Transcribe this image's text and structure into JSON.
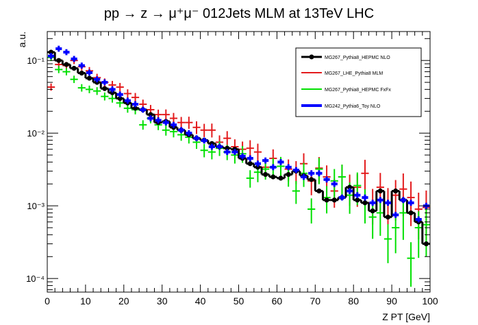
{
  "chart_data": {
    "type": "scatter",
    "title": "pp → z → μ⁺μ⁻ 012Jets MLM at 13TeV LHC",
    "xlabel": "Z PT [GeV]",
    "ylabel": "a.u.",
    "xlim": [
      0,
      100
    ],
    "ylim": [
      6.5e-05,
      0.25
    ],
    "yscale": "log",
    "grid": false,
    "legend_position": "top-right",
    "x_ticks": [
      0,
      10,
      20,
      30,
      40,
      50,
      60,
      70,
      80,
      90,
      100
    ],
    "x_tick_labels": [
      "0",
      "10",
      "20",
      "30",
      "40",
      "50",
      "60",
      "70",
      "80",
      "90",
      "100"
    ],
    "y_ticks": [
      0.0001,
      0.001,
      0.01,
      0.1
    ],
    "y_tick_labels": [
      "10⁻⁴",
      "10⁻³",
      "10⁻²",
      "10⁻¹"
    ],
    "series": [
      {
        "name": "MG267_Pythia8_HEPMC NLO",
        "color": "#000000",
        "style": "step-with-markers",
        "x": [
          1,
          3,
          5,
          7,
          9,
          11,
          13,
          15,
          17,
          19,
          21,
          23,
          25,
          27,
          29,
          31,
          33,
          35,
          37,
          39,
          41,
          43,
          45,
          47,
          49,
          51,
          53,
          55,
          57,
          59,
          61,
          63,
          65,
          67,
          69,
          71,
          73,
          75,
          77,
          79,
          81,
          83,
          85,
          87,
          89,
          91,
          93,
          95,
          97,
          99
        ],
        "y": [
          0.13,
          0.1,
          0.088,
          0.078,
          0.067,
          0.057,
          0.05,
          0.041,
          0.036,
          0.03,
          0.026,
          0.022,
          0.021,
          0.018,
          0.014,
          0.0145,
          0.012,
          0.011,
          0.0095,
          0.0085,
          0.008,
          0.0072,
          0.0065,
          0.0062,
          0.006,
          0.0045,
          0.0038,
          0.0034,
          0.0027,
          0.0025,
          0.0024,
          0.0027,
          0.003,
          0.0026,
          0.0023,
          0.0016,
          0.0012,
          0.0012,
          0.0013,
          0.0018,
          0.0012,
          0.0011,
          0.00085,
          0.0016,
          0.0007,
          0.0016,
          0.0012,
          0.0008,
          0.0006,
          0.0003
        ]
      },
      {
        "name": "MG267_LHE_Pythia8 MLM",
        "color": "#e31a1c",
        "style": "error-cross",
        "x": [
          1,
          3,
          5,
          7,
          9,
          11,
          13,
          15,
          17,
          19,
          21,
          23,
          25,
          27,
          29,
          31,
          33,
          35,
          37,
          39,
          41,
          43,
          45,
          47,
          49,
          51,
          53,
          55,
          57,
          59,
          61,
          63,
          65,
          67,
          69,
          71,
          73,
          75,
          77,
          79,
          81,
          83,
          85,
          87,
          89,
          91,
          93,
          95,
          97,
          99
        ],
        "y": [
          0.043,
          0.088,
          0.085,
          0.1,
          0.082,
          0.072,
          0.058,
          0.05,
          0.046,
          0.043,
          0.035,
          0.031,
          0.025,
          0.021,
          0.018,
          0.018,
          0.016,
          0.014,
          0.014,
          0.012,
          0.011,
          0.011,
          0.0075,
          0.0085,
          0.0065,
          0.006,
          0.0062,
          0.0055,
          0.0034,
          0.0045,
          0.0035,
          0.0032,
          0.003,
          0.0038,
          0.0022,
          0.0033,
          0.0025,
          0.0016,
          0.0025,
          0.0018,
          0.0018,
          0.0028,
          0.0011,
          0.0018,
          0.0011,
          0.0014,
          0.0017,
          0.0013,
          0.0009,
          0.00095
        ]
      },
      {
        "name": "MG267_Pythia8_HEPMC FxFx",
        "color": "#00e000",
        "style": "error-cross",
        "x": [
          1,
          3,
          5,
          7,
          9,
          11,
          13,
          15,
          17,
          19,
          21,
          23,
          25,
          27,
          29,
          31,
          33,
          35,
          37,
          39,
          41,
          43,
          45,
          47,
          49,
          51,
          53,
          55,
          57,
          59,
          61,
          63,
          65,
          67,
          69,
          71,
          73,
          75,
          77,
          79,
          81,
          83,
          85,
          87,
          89,
          91,
          93,
          95,
          97,
          99
        ],
        "y": [
          0.11,
          0.075,
          0.07,
          0.055,
          0.042,
          0.04,
          0.038,
          0.032,
          0.03,
          0.026,
          0.022,
          0.021,
          0.013,
          0.016,
          0.013,
          0.011,
          0.0105,
          0.0095,
          0.0088,
          0.0075,
          0.0058,
          0.0055,
          0.0062,
          0.0055,
          0.005,
          0.0052,
          0.0024,
          0.0029,
          0.0032,
          0.0034,
          0.0035,
          0.0027,
          0.0016,
          0.0028,
          0.0009,
          0.0032,
          0.0013,
          0.0022,
          0.0025,
          0.0014,
          0.0019,
          0.0011,
          0.0007,
          0.0008,
          0.00035,
          0.0005,
          0.0008,
          0.00019,
          0.0005,
          0.00055
        ]
      },
      {
        "name": "MG242_Pythia6_Toy NLO",
        "color": "#0000ff",
        "style": "error-bar",
        "x": [
          1,
          3,
          5,
          7,
          9,
          11,
          13,
          15,
          17,
          19,
          21,
          23,
          25,
          27,
          29,
          31,
          33,
          35,
          37,
          39,
          41,
          43,
          45,
          47,
          49,
          51,
          53,
          55,
          57,
          59,
          61,
          63,
          65,
          67,
          69,
          71,
          73,
          75,
          77,
          79,
          81,
          83,
          85,
          87,
          89,
          91,
          93,
          95,
          97,
          99
        ],
        "y": [
          0.115,
          0.145,
          0.13,
          0.105,
          0.085,
          0.068,
          0.055,
          0.05,
          0.04,
          0.034,
          0.028,
          0.025,
          0.021,
          0.016,
          0.015,
          0.014,
          0.013,
          0.011,
          0.01,
          0.0085,
          0.0079,
          0.0065,
          0.0065,
          0.0055,
          0.0055,
          0.0048,
          0.0045,
          0.0038,
          0.0042,
          0.0034,
          0.004,
          0.0034,
          0.0031,
          0.0025,
          0.0028,
          0.0028,
          0.0023,
          0.002,
          0.0013,
          0.0016,
          0.0014,
          0.0013,
          0.0011,
          0.0012,
          0.0011,
          0.00075,
          0.0012,
          0.0011,
          0.00065,
          0.001
        ]
      }
    ]
  }
}
